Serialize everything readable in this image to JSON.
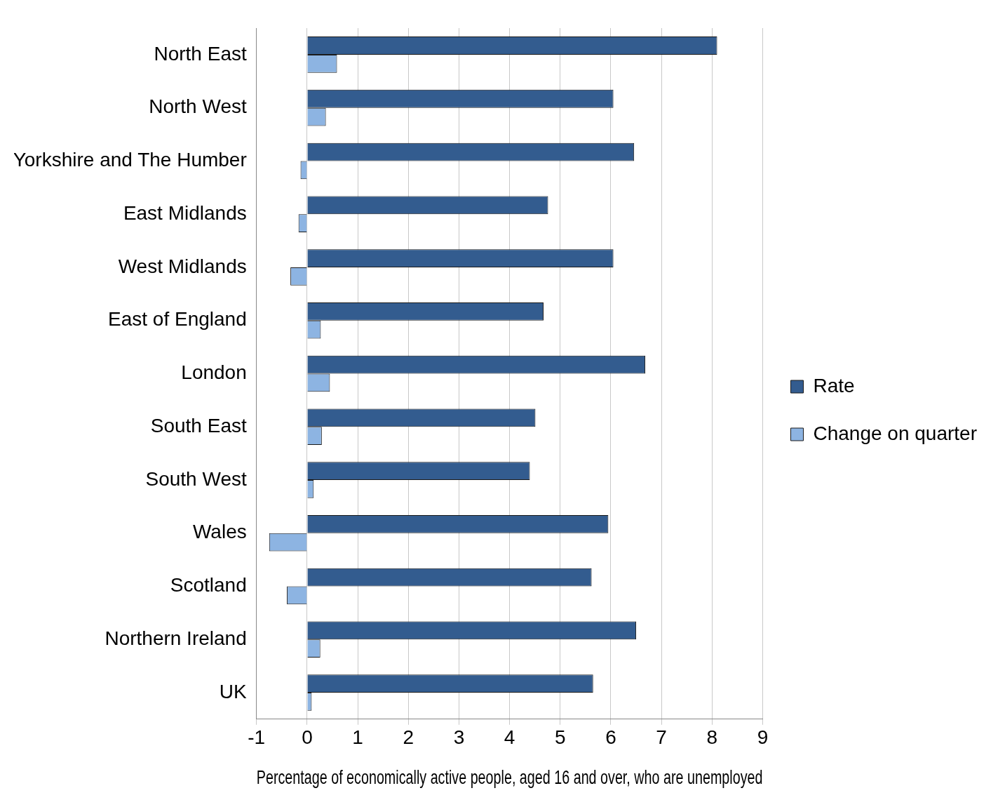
{
  "chart_data": {
    "type": "bar",
    "orientation": "horizontal",
    "xlabel": "Percentage of economically active people, aged 16 and over, who are unemployed",
    "categories": [
      "North East",
      "North West",
      "Yorkshire and The Humber",
      "East Midlands",
      "West Midlands",
      "East of England",
      "London",
      "South East",
      "South West",
      "Wales",
      "Scotland",
      "Northern Ireland",
      "UK"
    ],
    "series": [
      {
        "name": "Rate",
        "color": "#335c8f",
        "values": [
          8.1,
          6.05,
          6.46,
          4.76,
          6.05,
          4.67,
          6.68,
          4.51,
          4.4,
          5.95,
          5.62,
          6.5,
          5.65
        ]
      },
      {
        "name": "Change on quarter",
        "color": "#8db4e2",
        "values": [
          0.59,
          0.37,
          -0.13,
          -0.17,
          -0.33,
          0.27,
          0.45,
          0.29,
          0.13,
          -0.75,
          -0.4,
          0.26,
          0.09
        ]
      }
    ],
    "xlim": [
      -1,
      9
    ],
    "xticks": [
      -1,
      0,
      1,
      2,
      3,
      4,
      5,
      6,
      7,
      8,
      9
    ],
    "grid": "x",
    "legend": "right"
  }
}
